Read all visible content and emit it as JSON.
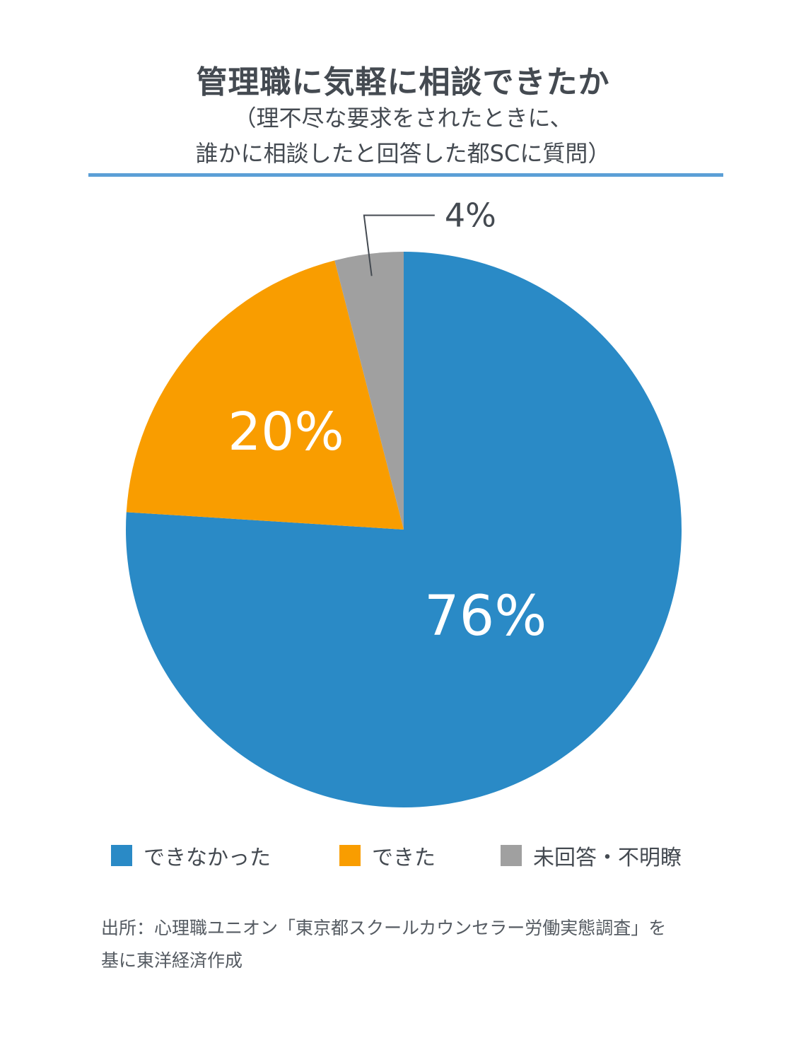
{
  "chart_data": {
    "type": "pie",
    "title": "管理職に気軽に相談できたか",
    "subtitle": [
      "（理不尽な要求をされたときに、",
      "誰かに相談したと回答した都SCに質問）"
    ],
    "slices": [
      {
        "label": "できなかった",
        "value": 76,
        "display": "76%",
        "color": "#2a8ac6"
      },
      {
        "label": "できた",
        "value": 20,
        "display": "20%",
        "color": "#f99d00"
      },
      {
        "label": "未回答・不明瞭",
        "value": 4,
        "display": "4%",
        "color": "#a0a0a0"
      }
    ],
    "legend_placement": "bottom"
  },
  "source": {
    "line1": "出所：心理職ユニオン「東京都スクールカウンセラー労働実態調査」を",
    "line2": "基に東洋経済作成"
  },
  "colors": {
    "text": "#444a51",
    "rule": "#5b9fd6",
    "leader": "#444a51"
  }
}
